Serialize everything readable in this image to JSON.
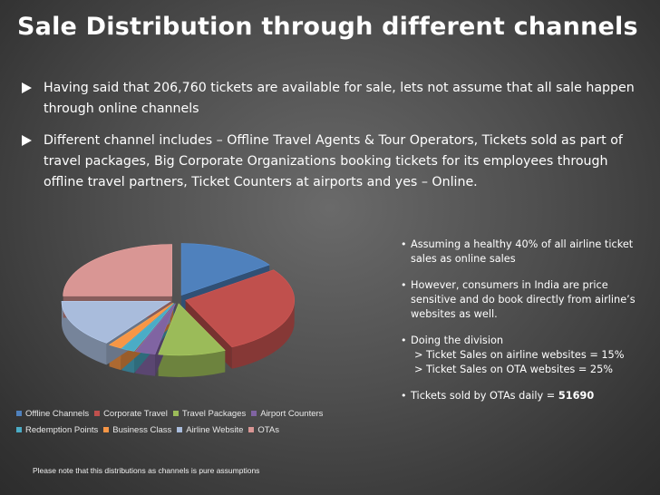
{
  "slide": {
    "title": "Sale Distribution through different channels",
    "bullets": [
      "Having said that 206,760 tickets are available for sale, lets not assume that all sale happen through online channels",
      "Different channel includes – Offline Travel Agents & Tour Operators, Tickets sold as part of travel packages, Big Corporate Organizations booking tickets for its employees through offline travel partners, Ticket Counters at airports and yes – Online."
    ],
    "side_notes": {
      "item1": "Assuming a healthy 40% of all airline ticket sales as online sales",
      "item2": "However, consumers in India are price sensitive and do book directly from airline’s websites as well.",
      "item3_head": "Doing the division",
      "item3_line1": "> Ticket Sales on airline websites = 15%",
      "item3_line2": "> Ticket Sales on OTA websites = 25%",
      "item4_prefix": "Tickets sold by OTAs daily = ",
      "item4_value": "51690"
    },
    "footnote": "Please note that this distributions as channels is pure assumptions"
  },
  "chart_data": {
    "type": "pie",
    "style": "3d-exploded",
    "legend_position": "bottom",
    "slices": [
      {
        "label": "Offline Channels",
        "value": 15,
        "color": "#4f81bd"
      },
      {
        "label": "Corporate Travel",
        "value": 28,
        "color": "#c0504d"
      },
      {
        "label": "Travel Packages",
        "value": 10,
        "color": "#9bbb59"
      },
      {
        "label": "Airport Counters",
        "value": 3,
        "color": "#8064a2"
      },
      {
        "label": "Redemption Points",
        "value": 2,
        "color": "#4bacc6"
      },
      {
        "label": "Business Class",
        "value": 2,
        "color": "#f79646"
      },
      {
        "label": "Airline Website",
        "value": 15,
        "color": "#a9bcdc"
      },
      {
        "label": "OTAs",
        "value": 25,
        "color": "#d99694"
      }
    ]
  }
}
